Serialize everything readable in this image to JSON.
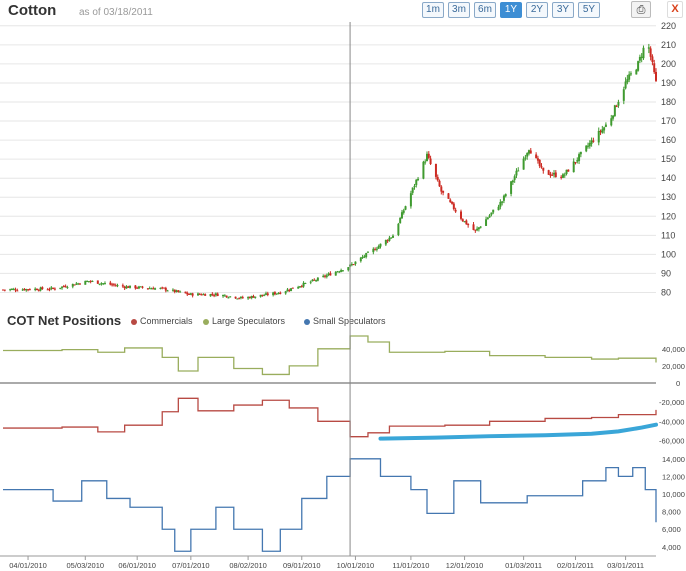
{
  "header": {
    "title": "Cotton",
    "as_of": "as of 03/18/2011",
    "ranges": [
      "1m",
      "3m",
      "6m",
      "1Y",
      "2Y",
      "3Y",
      "5Y"
    ],
    "active_range": "1Y",
    "print_icon": "printer-icon",
    "close_label": "X"
  },
  "cot": {
    "title": "COT Net Positions",
    "legend": [
      {
        "label": "Commercials",
        "color": "#b84a43"
      },
      {
        "label": "Large Speculators",
        "color": "#99ad5d"
      },
      {
        "label": "Small Speculators",
        "color": "#4477b0"
      }
    ]
  },
  "colors": {
    "up": "#3f9a2f",
    "down": "#cc2a22",
    "highlight": "#3aa6d8",
    "axis": "#555555",
    "grid": "#e6e6e6"
  },
  "chart_data": [
    {
      "type": "candlestick",
      "title": "Cotton",
      "x_date_range": [
        "2010-03-18",
        "2011-03-18"
      ],
      "ylim": [
        75,
        222
      ],
      "y_ticks": [
        80,
        90,
        100,
        110,
        120,
        130,
        140,
        150,
        160,
        170,
        180,
        190,
        200,
        210,
        220
      ],
      "close_anchors": [
        [
          "2010-03-18",
          81.5
        ],
        [
          "2010-04-15",
          82
        ],
        [
          "2010-05-05",
          86
        ],
        [
          "2010-05-25",
          83
        ],
        [
          "2010-06-15",
          82
        ],
        [
          "2010-06-30",
          79
        ],
        [
          "2010-07-15",
          79
        ],
        [
          "2010-07-30",
          77
        ],
        [
          "2010-08-20",
          80
        ],
        [
          "2010-09-10",
          87
        ],
        [
          "2010-09-28",
          94
        ],
        [
          "2010-10-12",
          103
        ],
        [
          "2010-10-22",
          110
        ],
        [
          "2010-11-10",
          152
        ],
        [
          "2010-11-18",
          133
        ],
        [
          "2010-11-30",
          118
        ],
        [
          "2010-12-07",
          112
        ],
        [
          "2010-12-22",
          128
        ],
        [
          "2011-01-06",
          156
        ],
        [
          "2011-01-14",
          143
        ],
        [
          "2011-01-25",
          141
        ],
        [
          "2011-02-08",
          157
        ],
        [
          "2011-02-20",
          170
        ],
        [
          "2011-03-01",
          190
        ],
        [
          "2011-03-08",
          200
        ],
        [
          "2011-03-13",
          213
        ],
        [
          "2011-03-18",
          190
        ]
      ]
    },
    {
      "type": "line",
      "name": "Large Speculators",
      "x_date_range": [
        "2010-03-18",
        "2011-03-18"
      ],
      "ylim": [
        0,
        62000
      ],
      "y_ticks": [
        20000,
        40000
      ],
      "y_tick_labels": [
        "20,000",
        "40,000"
      ],
      "series": [
        {
          "name": "Large Speculators",
          "points": [
            [
              "2010-03-18",
              38000
            ],
            [
              "2010-04-20",
              39000
            ],
            [
              "2010-05-10",
              36000
            ],
            [
              "2010-05-25",
              41000
            ],
            [
              "2010-06-15",
              30000
            ],
            [
              "2010-06-24",
              14000
            ],
            [
              "2010-07-05",
              30000
            ],
            [
              "2010-07-25",
              17000
            ],
            [
              "2010-08-10",
              10000
            ],
            [
              "2010-08-25",
              20000
            ],
            [
              "2010-09-10",
              40000
            ],
            [
              "2010-09-28",
              55000
            ],
            [
              "2010-10-08",
              48000
            ],
            [
              "2010-10-20",
              36000
            ],
            [
              "2010-11-20",
              37000
            ],
            [
              "2010-12-15",
              32000
            ],
            [
              "2011-01-15",
              30000
            ],
            [
              "2011-02-10",
              28000
            ],
            [
              "2011-02-25",
              29000
            ],
            [
              "2011-03-18",
              24000
            ]
          ]
        }
      ]
    },
    {
      "type": "line",
      "name": "Commercials",
      "x_date_range": [
        "2010-03-18",
        "2011-03-18"
      ],
      "ylim": [
        -72000,
        0
      ],
      "y_ticks": [
        -60000,
        -40000,
        -20000
      ],
      "y_tick_labels": [
        "-60,000",
        "-40,000",
        "-20,000"
      ],
      "series": [
        {
          "name": "Commercials",
          "points": [
            [
              "2010-03-18",
              -47000
            ],
            [
              "2010-04-20",
              -46000
            ],
            [
              "2010-05-10",
              -51000
            ],
            [
              "2010-05-25",
              -44000
            ],
            [
              "2010-06-15",
              -30000
            ],
            [
              "2010-06-24",
              -16000
            ],
            [
              "2010-07-05",
              -29000
            ],
            [
              "2010-07-25",
              -23000
            ],
            [
              "2010-08-10",
              -18000
            ],
            [
              "2010-08-25",
              -26000
            ],
            [
              "2010-09-10",
              -40000
            ],
            [
              "2010-09-28",
              -56000
            ],
            [
              "2010-10-08",
              -52000
            ],
            [
              "2010-10-20",
              -45000
            ],
            [
              "2010-11-20",
              -44000
            ],
            [
              "2010-12-15",
              -40000
            ],
            [
              "2011-01-15",
              -37000
            ],
            [
              "2011-02-10",
              -36000
            ],
            [
              "2011-02-25",
              -33000
            ],
            [
              "2011-03-18",
              -28000
            ]
          ]
        },
        {
          "points": [
            [
              "2010-10-15",
              -58000
            ],
            [
              "2010-11-15",
              -57000
            ],
            [
              "2010-12-15",
              -55500
            ],
            [
              "2011-01-15",
              -54500
            ],
            [
              "2011-02-10",
              -53000
            ],
            [
              "2011-02-25",
              -50500
            ],
            [
              "2011-03-10",
              -46500
            ],
            [
              "2011-03-18",
              -43500
            ]
          ]
        }
      ]
    },
    {
      "type": "line",
      "name": "Small Speculators",
      "x_date_range": [
        "2010-03-18",
        "2011-03-18"
      ],
      "ylim": [
        3300,
        15000
      ],
      "y_ticks": [
        4000,
        6000,
        8000,
        10000,
        12000,
        14000
      ],
      "y_tick_labels": [
        "4,000",
        "6,000",
        "8,000",
        "10,000",
        "12,000",
        "14,000"
      ],
      "series": [
        {
          "name": "Small Speculators",
          "points": [
            [
              "2010-03-18",
              10500
            ],
            [
              "2010-04-05",
              10500
            ],
            [
              "2010-04-15",
              9200
            ],
            [
              "2010-05-01",
              11500
            ],
            [
              "2010-05-15",
              9500
            ],
            [
              "2010-05-28",
              8500
            ],
            [
              "2010-06-15",
              6000
            ],
            [
              "2010-06-22",
              3500
            ],
            [
              "2010-07-01",
              6000
            ],
            [
              "2010-07-15",
              8500
            ],
            [
              "2010-07-25",
              6000
            ],
            [
              "2010-08-10",
              3500
            ],
            [
              "2010-08-20",
              6000
            ],
            [
              "2010-09-01",
              9500
            ],
            [
              "2010-09-15",
              12000
            ],
            [
              "2010-09-28",
              14000
            ],
            [
              "2010-10-15",
              12000
            ],
            [
              "2010-11-01",
              10500
            ],
            [
              "2010-11-10",
              7800
            ],
            [
              "2010-11-25",
              11500
            ],
            [
              "2010-12-10",
              9000
            ],
            [
              "2011-01-05",
              9800
            ],
            [
              "2011-02-05",
              11500
            ],
            [
              "2011-02-18",
              13000
            ],
            [
              "2011-02-25",
              12000
            ],
            [
              "2011-03-05",
              13000
            ],
            [
              "2011-03-12",
              10500
            ],
            [
              "2011-03-18",
              6800
            ]
          ]
        }
      ]
    }
  ],
  "x_axis": {
    "tick_dates": [
      "2010-04-01",
      "2010-05-03",
      "2010-06-01",
      "2010-07-01",
      "2010-08-02",
      "2010-09-01",
      "2010-10-01",
      "2010-11-01",
      "2010-12-01",
      "2011-01-03",
      "2011-02-01",
      "2011-03-01"
    ],
    "tick_labels": [
      "04/01/2010",
      "05/03/2010",
      "06/01/2010",
      "07/01/2010",
      "08/02/2010",
      "09/01/2010",
      "10/01/2010",
      "11/01/2010",
      "12/01/2010",
      "01/03/2011",
      "02/01/2011",
      "03/01/2011"
    ]
  },
  "crosshair_date": "2010-09-28"
}
